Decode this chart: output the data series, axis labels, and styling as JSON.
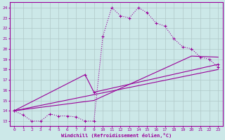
{
  "xlabel": "Windchill (Refroidissement éolien,°C)",
  "xlim": [
    -0.5,
    23.5
  ],
  "ylim": [
    12.5,
    24.5
  ],
  "xticks": [
    0,
    1,
    2,
    3,
    4,
    5,
    6,
    7,
    8,
    9,
    10,
    11,
    12,
    13,
    14,
    15,
    16,
    17,
    18,
    19,
    20,
    21,
    22,
    23
  ],
  "yticks": [
    13,
    14,
    15,
    16,
    17,
    18,
    19,
    20,
    21,
    22,
    23,
    24
  ],
  "bg_color": "#cce8e8",
  "line_color": "#990099",
  "grid_color": "#b0c8c8",
  "line_width": 0.8,
  "marker_size": 3.5,
  "line1": [
    [
      0,
      14.0
    ],
    [
      1,
      13.6
    ],
    [
      2,
      13.0
    ],
    [
      3,
      13.0
    ],
    [
      4,
      13.7
    ],
    [
      5,
      13.5
    ],
    [
      6,
      13.5
    ],
    [
      7,
      13.4
    ],
    [
      8,
      13.0
    ],
    [
      9,
      13.0
    ],
    [
      10,
      21.2
    ],
    [
      11,
      24.0
    ],
    [
      12,
      23.2
    ],
    [
      13,
      23.0
    ],
    [
      14,
      24.0
    ],
    [
      15,
      23.5
    ],
    [
      16,
      22.5
    ],
    [
      17,
      22.2
    ],
    [
      18,
      21.0
    ],
    [
      19,
      20.2
    ],
    [
      20,
      20.0
    ],
    [
      21,
      19.2
    ],
    [
      22,
      19.0
    ],
    [
      23,
      18.2
    ]
  ],
  "line2": [
    [
      0,
      14.0
    ],
    [
      8,
      17.5
    ],
    [
      9,
      15.8
    ],
    [
      23,
      18.5
    ]
  ],
  "line3": [
    [
      0,
      14.0
    ],
    [
      23,
      18.0
    ]
  ],
  "line4": [
    [
      0,
      14.0
    ],
    [
      9,
      15.0
    ],
    [
      20,
      19.3
    ],
    [
      23,
      19.2
    ]
  ]
}
